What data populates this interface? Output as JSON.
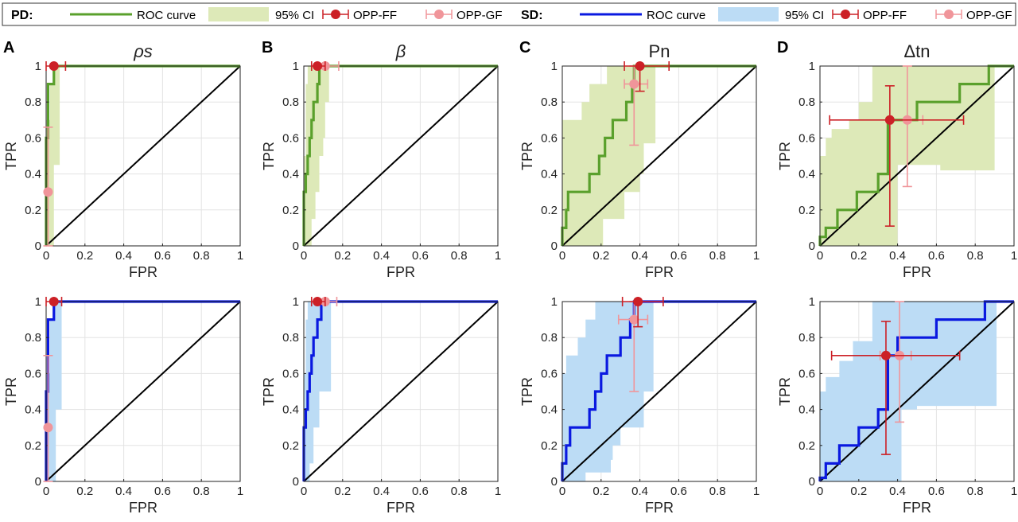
{
  "legend": {
    "groups": [
      {
        "label": "PD:",
        "color": "#5aa02c",
        "ci_color": "#dde9b8",
        "items": [
          "ROC curve",
          "95% CI",
          "OPP-FF",
          "OPP-GF"
        ]
      },
      {
        "label": "SD:",
        "color": "#0a19e0",
        "ci_color": "#bcdcf5",
        "items": [
          "ROC curve",
          "95% CI",
          "OPP-FF",
          "OPP-GF"
        ]
      }
    ],
    "ff_color": "#cc2026",
    "gf_color": "#f0959a"
  },
  "panels": [
    {
      "letter": "A",
      "title": "ρs"
    },
    {
      "letter": "B",
      "title": "β"
    },
    {
      "letter": "C",
      "title": "Pn"
    },
    {
      "letter": "D",
      "title": "Δtn"
    }
  ],
  "axes": {
    "xlabel": "FPR",
    "ylabel": "TPR",
    "xlim": [
      0,
      1
    ],
    "ylim": [
      0,
      1
    ],
    "ticks": [
      "0",
      "0.2",
      "0.4",
      "0.6",
      "0.8",
      "1"
    ],
    "grid": true
  },
  "chart_data": [
    {
      "type": "line",
      "panel": "A",
      "group": "PD",
      "xlabel": "FPR",
      "ylabel": "TPR",
      "xlim": [
        0,
        1
      ],
      "ylim": [
        0,
        1
      ],
      "roc": [
        [
          0,
          0
        ],
        [
          0,
          0.6
        ],
        [
          0.01,
          0.6
        ],
        [
          0.01,
          0.9
        ],
        [
          0.04,
          0.9
        ],
        [
          0.04,
          1
        ],
        [
          1,
          1
        ]
      ],
      "ci_upper": [
        [
          0,
          0.7
        ],
        [
          0.02,
          0.7
        ],
        [
          0.02,
          0.9
        ],
        [
          0.04,
          0.9
        ],
        [
          0.04,
          1
        ],
        [
          1,
          1
        ]
      ],
      "ci_lower": [
        [
          0.07,
          1
        ],
        [
          0.07,
          0.45
        ],
        [
          0.04,
          0.45
        ],
        [
          0.04,
          0
        ],
        [
          0,
          0
        ]
      ],
      "opp_ff": {
        "x": 0.04,
        "y": 1.0,
        "xerr": [
          0.0,
          0.1
        ],
        "yerr": null
      },
      "opp_gf": {
        "x": 0.01,
        "y": 0.3,
        "xerr": null,
        "yerr": [
          0.0,
          0.66
        ]
      }
    },
    {
      "type": "line",
      "panel": "B",
      "group": "PD",
      "xlabel": "FPR",
      "ylabel": "TPR",
      "xlim": [
        0,
        1
      ],
      "ylim": [
        0,
        1
      ],
      "roc": [
        [
          0,
          0
        ],
        [
          0,
          0.3
        ],
        [
          0.01,
          0.3
        ],
        [
          0.01,
          0.4
        ],
        [
          0.02,
          0.4
        ],
        [
          0.02,
          0.5
        ],
        [
          0.03,
          0.5
        ],
        [
          0.03,
          0.6
        ],
        [
          0.04,
          0.6
        ],
        [
          0.04,
          0.7
        ],
        [
          0.05,
          0.7
        ],
        [
          0.05,
          0.8
        ],
        [
          0.07,
          0.8
        ],
        [
          0.07,
          0.9
        ],
        [
          0.08,
          0.9
        ],
        [
          0.08,
          1
        ],
        [
          1,
          1
        ]
      ],
      "ci_upper": [
        [
          0,
          0.5
        ],
        [
          0.01,
          0.5
        ],
        [
          0.01,
          0.9
        ],
        [
          0.02,
          0.9
        ],
        [
          0.02,
          1
        ],
        [
          1,
          1
        ]
      ],
      "ci_lower": [
        [
          0.13,
          1
        ],
        [
          0.13,
          0.8
        ],
        [
          0.11,
          0.8
        ],
        [
          0.11,
          0.6
        ],
        [
          0.1,
          0.6
        ],
        [
          0.1,
          0.5
        ],
        [
          0.08,
          0.5
        ],
        [
          0.08,
          0.3
        ],
        [
          0.06,
          0.3
        ],
        [
          0.06,
          0.15
        ],
        [
          0.04,
          0.15
        ],
        [
          0.04,
          0
        ],
        [
          0,
          0
        ]
      ],
      "opp_ff": {
        "x": 0.07,
        "y": 1.0,
        "xerr": [
          0.04,
          0.11
        ],
        "yerr": null
      },
      "opp_gf": {
        "x": 0.11,
        "y": 1.0,
        "xerr": [
          0.07,
          0.18
        ],
        "yerr": null
      }
    },
    {
      "type": "line",
      "panel": "C",
      "group": "PD",
      "xlabel": "FPR",
      "ylabel": "TPR",
      "xlim": [
        0,
        1
      ],
      "ylim": [
        0,
        1
      ],
      "roc": [
        [
          0,
          0
        ],
        [
          0,
          0.1
        ],
        [
          0.02,
          0.1
        ],
        [
          0.02,
          0.2
        ],
        [
          0.03,
          0.2
        ],
        [
          0.03,
          0.3
        ],
        [
          0.14,
          0.3
        ],
        [
          0.14,
          0.4
        ],
        [
          0.19,
          0.4
        ],
        [
          0.19,
          0.5
        ],
        [
          0.22,
          0.5
        ],
        [
          0.22,
          0.6
        ],
        [
          0.26,
          0.6
        ],
        [
          0.26,
          0.7
        ],
        [
          0.33,
          0.7
        ],
        [
          0.33,
          0.8
        ],
        [
          0.36,
          0.8
        ],
        [
          0.36,
          0.9
        ],
        [
          0.37,
          0.9
        ],
        [
          0.37,
          1
        ],
        [
          1,
          1
        ]
      ],
      "ci_upper": [
        [
          0,
          0.7
        ],
        [
          0.1,
          0.7
        ],
        [
          0.1,
          0.8
        ],
        [
          0.14,
          0.8
        ],
        [
          0.14,
          0.9
        ],
        [
          0.23,
          0.9
        ],
        [
          0.23,
          1
        ],
        [
          1,
          1
        ]
      ],
      "ci_lower": [
        [
          0.48,
          1
        ],
        [
          0.48,
          0.57
        ],
        [
          0.42,
          0.57
        ],
        [
          0.42,
          0.4
        ],
        [
          0.4,
          0.4
        ],
        [
          0.4,
          0.3
        ],
        [
          0.32,
          0.3
        ],
        [
          0.32,
          0.15
        ],
        [
          0.21,
          0.15
        ],
        [
          0.21,
          0
        ],
        [
          0,
          0
        ]
      ],
      "opp_ff": {
        "x": 0.4,
        "y": 1.0,
        "xerr": [
          0.32,
          0.55
        ],
        "yerr": [
          0.86,
          1.0
        ]
      },
      "opp_gf": {
        "x": 0.37,
        "y": 0.9,
        "xerr": [
          0.32,
          0.44
        ],
        "yerr": [
          0.56,
          1.0
        ]
      }
    },
    {
      "type": "line",
      "panel": "D",
      "group": "PD",
      "xlabel": "FPR",
      "ylabel": "TPR",
      "xlim": [
        0,
        1
      ],
      "ylim": [
        0,
        1
      ],
      "roc": [
        [
          0,
          0
        ],
        [
          0,
          0.05
        ],
        [
          0.03,
          0.05
        ],
        [
          0.03,
          0.1
        ],
        [
          0.09,
          0.1
        ],
        [
          0.09,
          0.2
        ],
        [
          0.19,
          0.2
        ],
        [
          0.19,
          0.3
        ],
        [
          0.3,
          0.3
        ],
        [
          0.3,
          0.4
        ],
        [
          0.35,
          0.4
        ],
        [
          0.35,
          0.7
        ],
        [
          0.5,
          0.7
        ],
        [
          0.5,
          0.8
        ],
        [
          0.72,
          0.8
        ],
        [
          0.72,
          0.9
        ],
        [
          0.87,
          0.9
        ],
        [
          0.87,
          1
        ],
        [
          1,
          1
        ]
      ],
      "ci_upper": [
        [
          0,
          0.5
        ],
        [
          0.03,
          0.5
        ],
        [
          0.03,
          0.6
        ],
        [
          0.06,
          0.6
        ],
        [
          0.06,
          0.65
        ],
        [
          0.15,
          0.65
        ],
        [
          0.15,
          0.7
        ],
        [
          0.2,
          0.7
        ],
        [
          0.2,
          0.8
        ],
        [
          0.27,
          0.8
        ],
        [
          0.27,
          1
        ],
        [
          1,
          1
        ]
      ],
      "ci_lower": [
        [
          0.9,
          1
        ],
        [
          0.9,
          0.42
        ],
        [
          0.62,
          0.42
        ],
        [
          0.62,
          0.45
        ],
        [
          0.4,
          0.45
        ],
        [
          0.4,
          0
        ],
        [
          0,
          0
        ]
      ],
      "opp_ff": {
        "x": 0.36,
        "y": 0.7,
        "xerr": [
          0.05,
          0.74
        ],
        "yerr": [
          0.11,
          0.89
        ]
      },
      "opp_gf": {
        "x": 0.45,
        "y": 0.7,
        "xerr": [
          0.37,
          0.53
        ],
        "yerr": [
          0.33,
          1.0
        ]
      }
    },
    {
      "type": "line",
      "panel": "A",
      "group": "SD",
      "xlabel": "FPR",
      "ylabel": "TPR",
      "xlim": [
        0,
        1
      ],
      "ylim": [
        0,
        1
      ],
      "roc": [
        [
          0,
          0
        ],
        [
          0,
          0.5
        ],
        [
          0.01,
          0.5
        ],
        [
          0.01,
          0.9
        ],
        [
          0.04,
          0.9
        ],
        [
          0.04,
          1
        ],
        [
          1,
          1
        ]
      ],
      "ci_upper": [
        [
          0,
          0.6
        ],
        [
          0.02,
          0.6
        ],
        [
          0.02,
          0.9
        ],
        [
          0.04,
          0.9
        ],
        [
          0.04,
          1
        ],
        [
          1,
          1
        ]
      ],
      "ci_lower": [
        [
          0.08,
          1
        ],
        [
          0.08,
          0.4
        ],
        [
          0.05,
          0.4
        ],
        [
          0.05,
          0
        ],
        [
          0,
          0
        ]
      ],
      "opp_ff": {
        "x": 0.04,
        "y": 1.0,
        "xerr": [
          0.0,
          0.08
        ],
        "yerr": null
      },
      "opp_gf": {
        "x": 0.01,
        "y": 0.3,
        "xerr": null,
        "yerr": [
          0.0,
          0.7
        ]
      }
    },
    {
      "type": "line",
      "panel": "B",
      "group": "SD",
      "xlabel": "FPR",
      "ylabel": "TPR",
      "xlim": [
        0,
        1
      ],
      "ylim": [
        0,
        1
      ],
      "roc": [
        [
          0,
          0
        ],
        [
          0,
          0.3
        ],
        [
          0.01,
          0.3
        ],
        [
          0.01,
          0.4
        ],
        [
          0.02,
          0.4
        ],
        [
          0.02,
          0.5
        ],
        [
          0.03,
          0.5
        ],
        [
          0.03,
          0.6
        ],
        [
          0.04,
          0.6
        ],
        [
          0.04,
          0.7
        ],
        [
          0.05,
          0.7
        ],
        [
          0.05,
          0.8
        ],
        [
          0.07,
          0.8
        ],
        [
          0.07,
          0.9
        ],
        [
          0.09,
          0.9
        ],
        [
          0.09,
          1
        ],
        [
          1,
          1
        ]
      ],
      "ci_upper": [
        [
          0,
          0.6
        ],
        [
          0.01,
          0.6
        ],
        [
          0.01,
          0.9
        ],
        [
          0.02,
          0.9
        ],
        [
          0.02,
          1
        ],
        [
          1,
          1
        ]
      ],
      "ci_lower": [
        [
          0.14,
          1
        ],
        [
          0.14,
          0.5
        ],
        [
          0.08,
          0.5
        ],
        [
          0.08,
          0.3
        ],
        [
          0.05,
          0.3
        ],
        [
          0.05,
          0.1
        ],
        [
          0.03,
          0.1
        ],
        [
          0.03,
          0
        ],
        [
          0,
          0
        ]
      ],
      "opp_ff": {
        "x": 0.07,
        "y": 1.0,
        "xerr": [
          0.04,
          0.11
        ],
        "yerr": null
      },
      "opp_gf": {
        "x": 0.11,
        "y": 1.0,
        "xerr": [
          0.07,
          0.17
        ],
        "yerr": null
      }
    },
    {
      "type": "line",
      "panel": "C",
      "group": "SD",
      "xlabel": "FPR",
      "ylabel": "TPR",
      "xlim": [
        0,
        1
      ],
      "ylim": [
        0,
        1
      ],
      "roc": [
        [
          0,
          0
        ],
        [
          0,
          0.1
        ],
        [
          0.02,
          0.1
        ],
        [
          0.02,
          0.2
        ],
        [
          0.04,
          0.2
        ],
        [
          0.04,
          0.3
        ],
        [
          0.14,
          0.3
        ],
        [
          0.14,
          0.4
        ],
        [
          0.17,
          0.4
        ],
        [
          0.17,
          0.5
        ],
        [
          0.2,
          0.5
        ],
        [
          0.2,
          0.6
        ],
        [
          0.23,
          0.6
        ],
        [
          0.23,
          0.7
        ],
        [
          0.3,
          0.7
        ],
        [
          0.3,
          0.8
        ],
        [
          0.35,
          0.8
        ],
        [
          0.35,
          0.9
        ],
        [
          0.37,
          0.9
        ],
        [
          0.37,
          1
        ],
        [
          1,
          1
        ]
      ],
      "ci_upper": [
        [
          0,
          0.6
        ],
        [
          0.02,
          0.6
        ],
        [
          0.02,
          0.7
        ],
        [
          0.08,
          0.7
        ],
        [
          0.08,
          0.8
        ],
        [
          0.12,
          0.8
        ],
        [
          0.12,
          0.9
        ],
        [
          0.17,
          0.9
        ],
        [
          0.17,
          1
        ],
        [
          1,
          1
        ]
      ],
      "ci_lower": [
        [
          0.47,
          1
        ],
        [
          0.47,
          0.5
        ],
        [
          0.42,
          0.5
        ],
        [
          0.42,
          0.3
        ],
        [
          0.3,
          0.3
        ],
        [
          0.3,
          0.2
        ],
        [
          0.26,
          0.2
        ],
        [
          0.26,
          0.12
        ],
        [
          0.25,
          0.12
        ],
        [
          0.25,
          0.05
        ],
        [
          0.12,
          0.05
        ],
        [
          0.12,
          0
        ],
        [
          0,
          0
        ]
      ],
      "opp_ff": {
        "x": 0.39,
        "y": 1.0,
        "xerr": [
          0.31,
          0.52
        ],
        "yerr": [
          0.86,
          1.0
        ]
      },
      "opp_gf": {
        "x": 0.37,
        "y": 0.9,
        "xerr": [
          0.29,
          0.44
        ],
        "yerr": [
          0.5,
          1.0
        ]
      }
    },
    {
      "type": "line",
      "panel": "D",
      "group": "SD",
      "xlabel": "FPR",
      "ylabel": "TPR",
      "xlim": [
        0,
        1
      ],
      "ylim": [
        0,
        1
      ],
      "roc": [
        [
          0,
          0
        ],
        [
          0,
          0.02
        ],
        [
          0.03,
          0.02
        ],
        [
          0.03,
          0.1
        ],
        [
          0.1,
          0.1
        ],
        [
          0.1,
          0.2
        ],
        [
          0.2,
          0.2
        ],
        [
          0.2,
          0.3
        ],
        [
          0.3,
          0.3
        ],
        [
          0.3,
          0.4
        ],
        [
          0.35,
          0.4
        ],
        [
          0.35,
          0.7
        ],
        [
          0.4,
          0.7
        ],
        [
          0.4,
          0.8
        ],
        [
          0.6,
          0.8
        ],
        [
          0.6,
          0.9
        ],
        [
          0.85,
          0.9
        ],
        [
          0.85,
          1
        ],
        [
          1,
          1
        ]
      ],
      "ci_upper": [
        [
          0,
          0.5
        ],
        [
          0.03,
          0.5
        ],
        [
          0.03,
          0.58
        ],
        [
          0.1,
          0.58
        ],
        [
          0.1,
          0.67
        ],
        [
          0.17,
          0.67
        ],
        [
          0.17,
          0.78
        ],
        [
          0.27,
          0.78
        ],
        [
          0.27,
          1
        ],
        [
          1,
          1
        ]
      ],
      "ci_lower": [
        [
          0.91,
          1
        ],
        [
          0.91,
          0.42
        ],
        [
          0.5,
          0.42
        ],
        [
          0.5,
          0.4
        ],
        [
          0.42,
          0.4
        ],
        [
          0.42,
          0
        ],
        [
          0,
          0
        ]
      ],
      "opp_ff": {
        "x": 0.34,
        "y": 0.7,
        "xerr": [
          0.06,
          0.72
        ],
        "yerr": [
          0.15,
          0.89
        ]
      },
      "opp_gf": {
        "x": 0.41,
        "y": 0.7,
        "xerr": [
          0.31,
          0.47
        ],
        "yerr": [
          0.33,
          1.0
        ]
      }
    }
  ]
}
